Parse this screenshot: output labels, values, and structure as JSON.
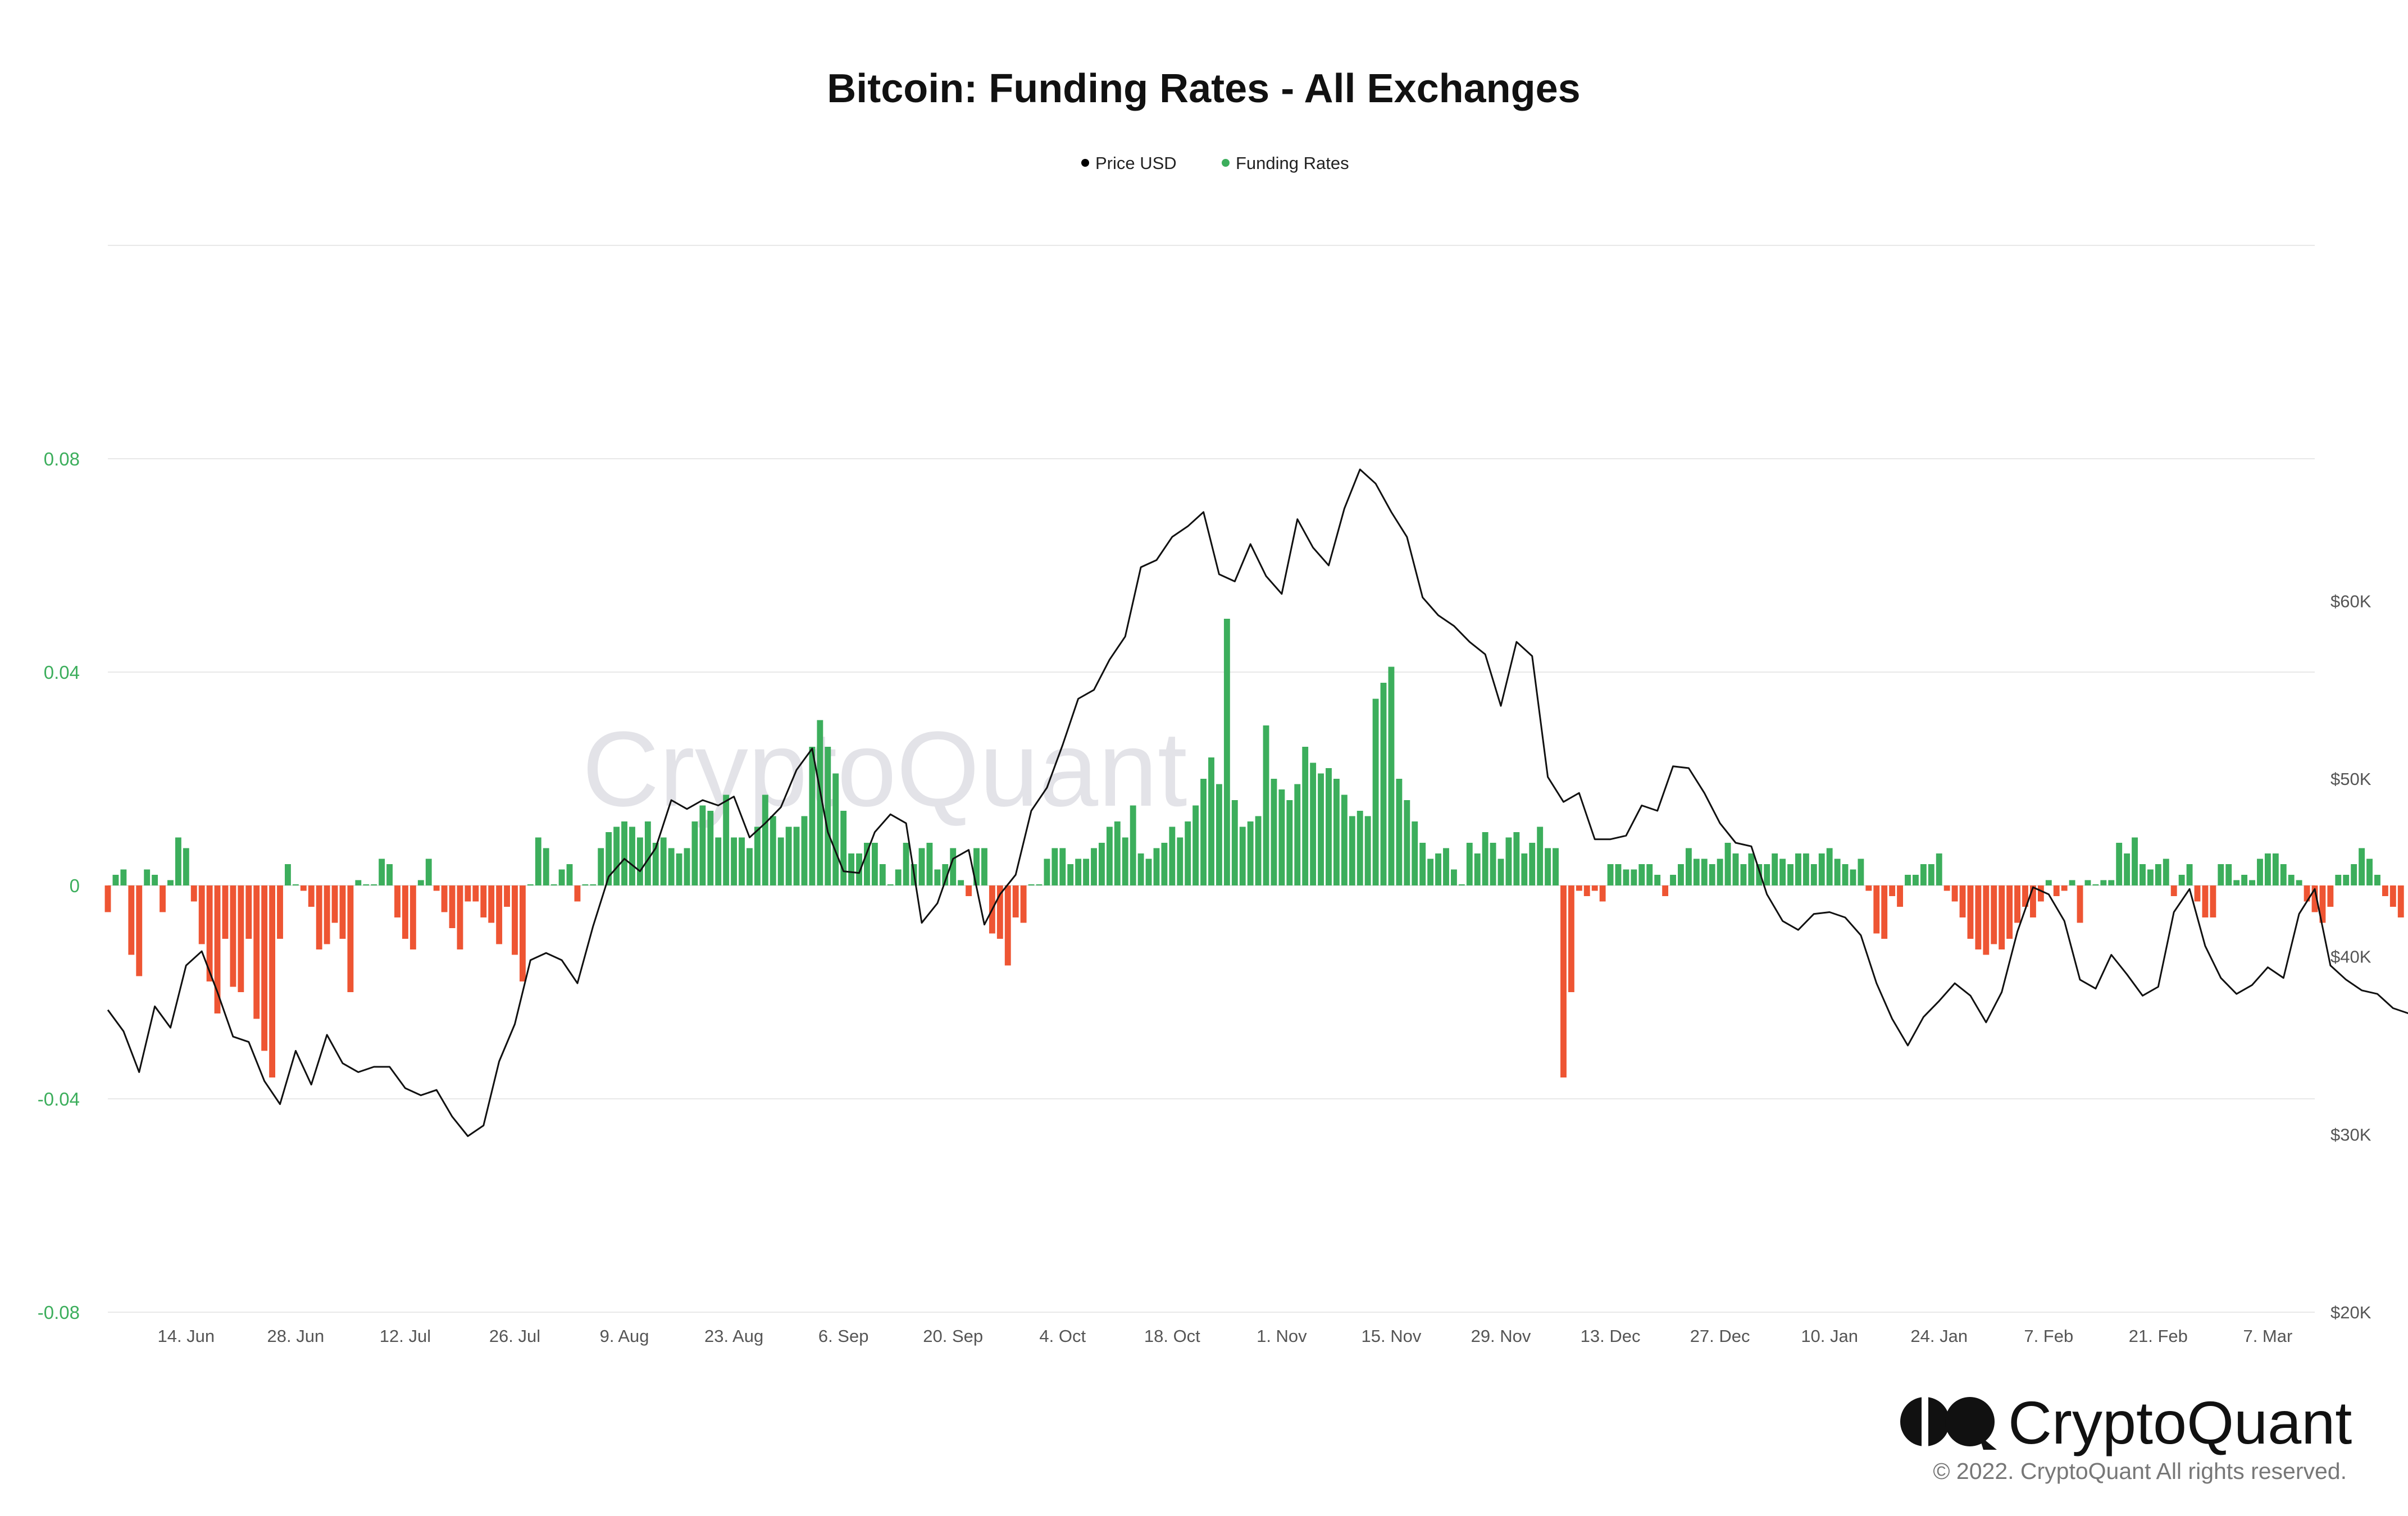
{
  "chart_data": {
    "type": "bar+line",
    "title": "Bitcoin: Funding Rates - All Exchanges",
    "legend": [
      {
        "name": "Price USD",
        "color": "#000000"
      },
      {
        "name": "Funding Rates",
        "color": "#3cae5c"
      }
    ],
    "legend_placement": "top-center",
    "grid": true,
    "y_left": {
      "ticks": [
        "0.08",
        "0.04",
        "0",
        "-0.04",
        "-0.08"
      ],
      "range": [
        -0.08,
        0.12
      ],
      "color": "#3cae5c"
    },
    "y_right": {
      "ticks": [
        "$60K",
        "$50K",
        "$40K",
        "$30K",
        "$20K"
      ],
      "range": [
        20000,
        80000
      ]
    },
    "x_ticks": [
      "14. Jun",
      "28. Jun",
      "12. Jul",
      "26. Jul",
      "9. Aug",
      "23. Aug",
      "6. Sep",
      "20. Sep",
      "4. Oct",
      "18. Oct",
      "1. Nov",
      "15. Nov",
      "29. Nov",
      "13. Dec",
      "27. Dec",
      "10. Jan",
      "24. Jan",
      "7. Feb",
      "21. Feb",
      "7. Mar"
    ],
    "x_range": [
      "2021-06-04",
      "2022-03-13"
    ],
    "positive_color": "#3cae5c",
    "negative_color": "#ee5533",
    "funding_rates": {
      "start": "2021-06-04",
      "step_days": 1,
      "values": [
        -0.005,
        0.002,
        0.003,
        -0.013,
        -0.017,
        0.003,
        0.002,
        -0.005,
        0.001,
        0.009,
        0.007,
        -0.003,
        -0.011,
        -0.018,
        -0.024,
        -0.01,
        -0.019,
        -0.02,
        -0.01,
        -0.025,
        -0.031,
        -0.036,
        -0.01,
        0.004,
        0.0,
        -0.001,
        -0.004,
        -0.012,
        -0.011,
        -0.007,
        -0.01,
        -0.02,
        0.001,
        0.0,
        0.0,
        0.005,
        0.004,
        -0.006,
        -0.01,
        -0.012,
        0.001,
        0.005,
        -0.001,
        -0.005,
        -0.008,
        -0.012,
        -0.003,
        -0.003,
        -0.006,
        -0.007,
        -0.011,
        -0.004,
        -0.013,
        -0.018,
        0.0,
        0.009,
        0.007,
        0.0,
        0.003,
        0.004,
        -0.003,
        0.0,
        0.0,
        0.007,
        0.01,
        0.011,
        0.012,
        0.011,
        0.009,
        0.012,
        0.008,
        0.009,
        0.007,
        0.006,
        0.007,
        0.012,
        0.015,
        0.014,
        0.009,
        0.017,
        0.009,
        0.009,
        0.007,
        0.011,
        0.017,
        0.013,
        0.009,
        0.011,
        0.011,
        0.013,
        0.026,
        0.031,
        0.026,
        0.021,
        0.014,
        0.006,
        0.006,
        0.008,
        0.008,
        0.004,
        0.0,
        0.003,
        0.008,
        0.004,
        0.007,
        0.008,
        0.003,
        0.004,
        0.007,
        0.001,
        -0.002,
        0.007,
        0.007,
        -0.009,
        -0.01,
        -0.015,
        -0.006,
        -0.007,
        0.0,
        0.0,
        0.005,
        0.007,
        0.007,
        0.004,
        0.005,
        0.005,
        0.007,
        0.008,
        0.011,
        0.012,
        0.009,
        0.015,
        0.006,
        0.005,
        0.007,
        0.008,
        0.011,
        0.009,
        0.012,
        0.015,
        0.02,
        0.024,
        0.019,
        0.05,
        0.016,
        0.011,
        0.012,
        0.013,
        0.03,
        0.02,
        0.018,
        0.016,
        0.019,
        0.026,
        0.023,
        0.021,
        0.022,
        0.02,
        0.017,
        0.013,
        0.014,
        0.013,
        0.035,
        0.038,
        0.041,
        0.02,
        0.016,
        0.012,
        0.008,
        0.005,
        0.006,
        0.007,
        0.003,
        0.0,
        0.008,
        0.006,
        0.01,
        0.008,
        0.005,
        0.009,
        0.01,
        0.006,
        0.008,
        0.011,
        0.007,
        0.007,
        -0.036,
        -0.02,
        -0.001,
        -0.002,
        -0.001,
        -0.003,
        0.004,
        0.004,
        0.003,
        0.003,
        0.004,
        0.004,
        0.002,
        -0.002,
        0.002,
        0.004,
        0.007,
        0.005,
        0.005,
        0.004,
        0.005,
        0.008,
        0.006,
        0.004,
        0.006,
        0.004,
        0.004,
        0.006,
        0.005,
        0.004,
        0.006,
        0.006,
        0.004,
        0.006,
        0.007,
        0.005,
        0.004,
        0.003,
        0.005,
        -0.001,
        -0.009,
        -0.01,
        -0.002,
        -0.004,
        0.002,
        0.002,
        0.004,
        0.004,
        0.006,
        -0.001,
        -0.003,
        -0.006,
        -0.01,
        -0.012,
        -0.013,
        -0.011,
        -0.012,
        -0.01,
        -0.007,
        -0.004,
        -0.006,
        -0.003,
        0.001,
        -0.002,
        -0.001,
        0.001,
        -0.007,
        0.001,
        0.0,
        0.001,
        0.001,
        0.008,
        0.006,
        0.009,
        0.004,
        0.003,
        0.004,
        0.005,
        -0.002,
        0.002,
        0.004,
        -0.003,
        -0.006,
        -0.006,
        0.004,
        0.004,
        0.001,
        0.002,
        0.001,
        0.005,
        0.006,
        0.006,
        0.004,
        0.002,
        0.001,
        -0.003,
        -0.005,
        -0.007,
        -0.004,
        0.002,
        0.002,
        0.004,
        0.007,
        0.005,
        0.002,
        -0.002,
        -0.004,
        -0.006
      ]
    },
    "price_usd": {
      "start": "2021-06-04",
      "step_days": 2,
      "values": [
        37000,
        35800,
        33500,
        37200,
        36000,
        39500,
        40300,
        38000,
        35500,
        35200,
        33000,
        31700,
        34700,
        32800,
        35600,
        34000,
        33500,
        33800,
        33800,
        32600,
        32200,
        32500,
        31000,
        29900,
        30500,
        34100,
        36200,
        39800,
        40200,
        39800,
        38500,
        41700,
        44500,
        45500,
        44800,
        46100,
        48800,
        48300,
        48800,
        48500,
        49000,
        46700,
        47500,
        48400,
        50500,
        51700,
        47000,
        44800,
        44700,
        47000,
        48000,
        47500,
        41900,
        43000,
        45500,
        46000,
        41800,
        43500,
        44600,
        48200,
        49500,
        51900,
        54500,
        55000,
        56700,
        58000,
        61900,
        62300,
        63600,
        64200,
        65000,
        61500,
        61100,
        63200,
        61400,
        60400,
        64600,
        63000,
        62000,
        65200,
        67400,
        66600,
        65000,
        63600,
        60200,
        59200,
        58600,
        57700,
        57000,
        54100,
        57700,
        56900,
        50100,
        48700,
        49200,
        46600,
        46600,
        46800,
        48500,
        48200,
        50700,
        50600,
        49200,
        47500,
        46400,
        46200,
        43500,
        42000,
        41500,
        42400,
        42500,
        42200,
        41200,
        38500,
        36500,
        35000,
        36600,
        37500,
        38500,
        37800,
        36300,
        38000,
        41400,
        43900,
        43500,
        42000,
        38700,
        38200,
        40100,
        39000,
        37800,
        38300,
        42500,
        43800,
        40600,
        38800,
        37900,
        38400,
        39400,
        38800,
        42400,
        43800,
        39500,
        38700,
        38100,
        37900,
        37100,
        36800
      ]
    }
  },
  "brand": {
    "name": "CryptoQuant",
    "copyright": "© 2022. CryptoQuant All rights reserved."
  },
  "watermark": "CryptoQuant"
}
